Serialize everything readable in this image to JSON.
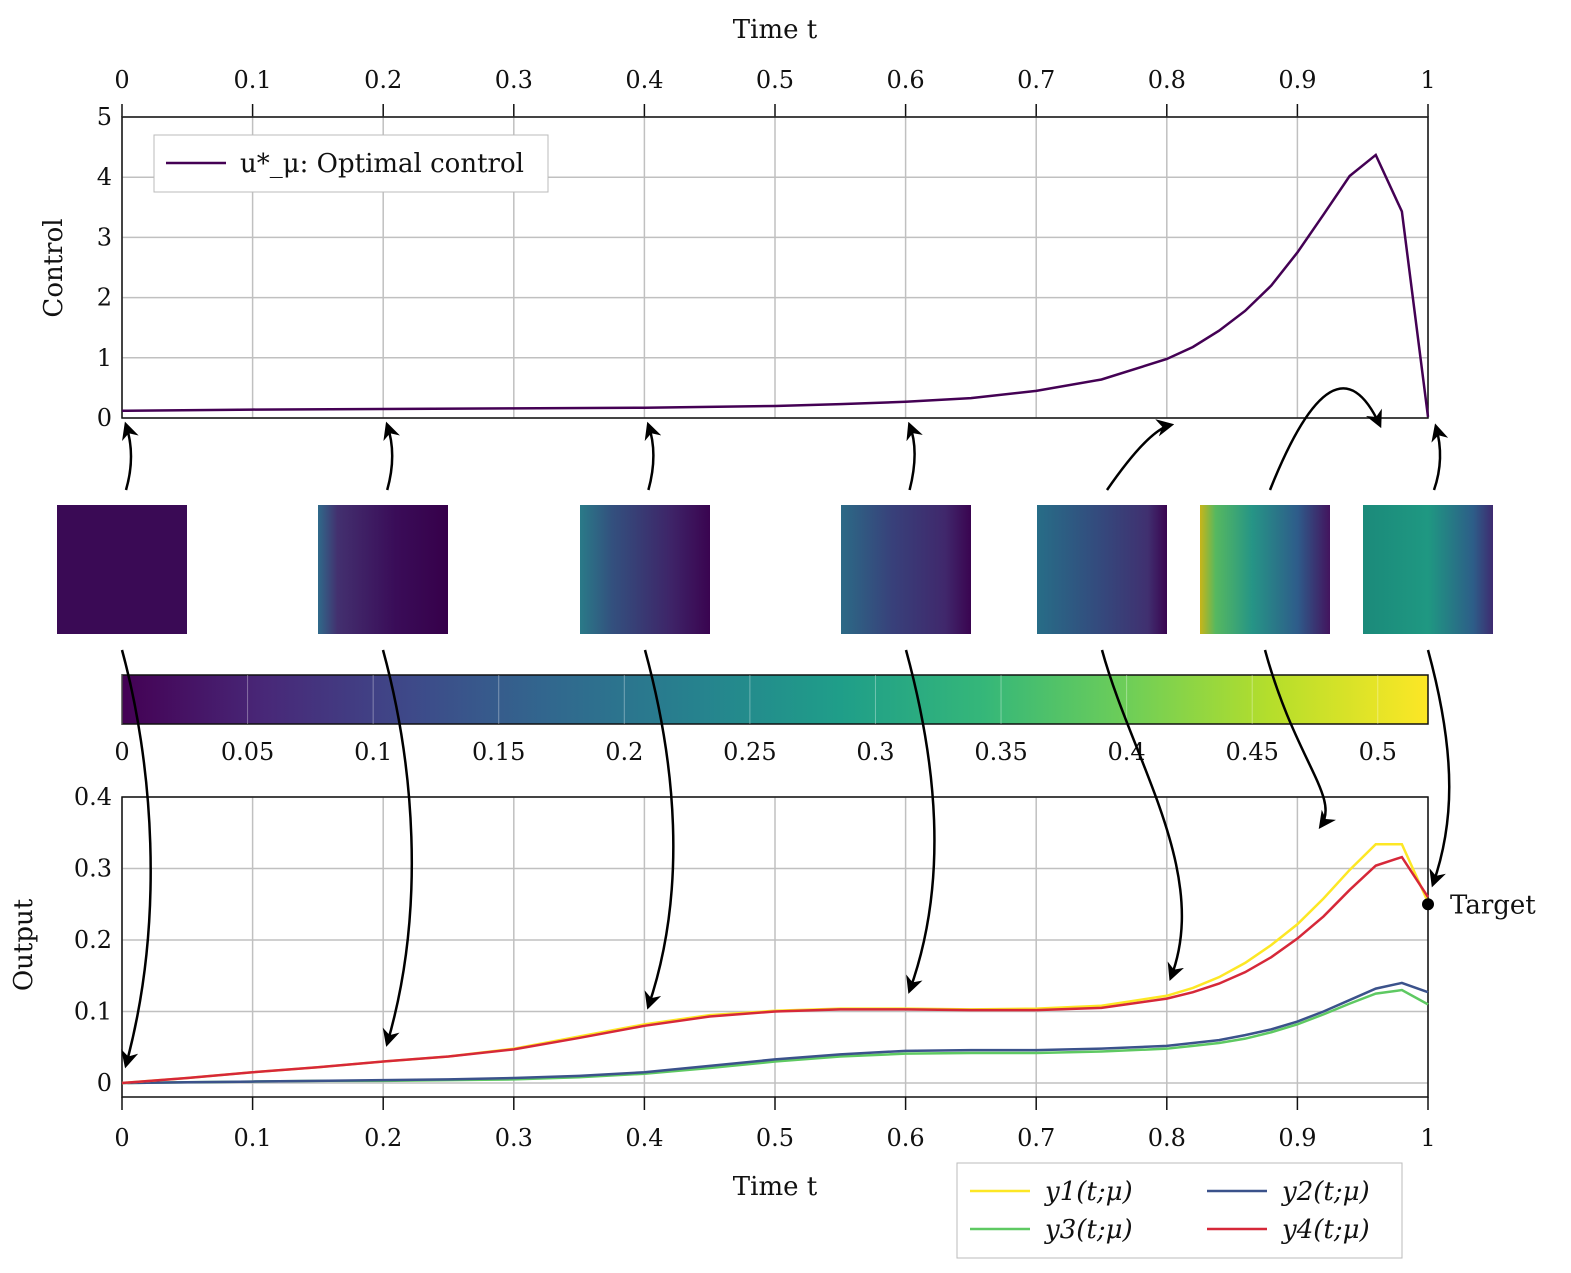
{
  "chart_data": [
    {
      "type": "line",
      "xlabel": "Time t",
      "ylabel": "Control",
      "xlim": [
        0,
        1
      ],
      "ylim": [
        0,
        5
      ],
      "xticks": [
        "0",
        "0.1",
        "0.2",
        "0.3",
        "0.4",
        "0.5",
        "0.6",
        "0.7",
        "0.8",
        "0.9",
        "1"
      ],
      "yticks": [
        "0",
        "1",
        "2",
        "3",
        "4",
        "5"
      ],
      "grid": true,
      "legend_position": "top-left",
      "series": [
        {
          "name": "u*_μ: Optimal control",
          "color": "#440154",
          "x": [
            0,
            0.1,
            0.2,
            0.3,
            0.4,
            0.5,
            0.55,
            0.6,
            0.65,
            0.7,
            0.75,
            0.8,
            0.82,
            0.84,
            0.86,
            0.88,
            0.9,
            0.92,
            0.94,
            0.96,
            0.98,
            1.0
          ],
          "y": [
            0.12,
            0.14,
            0.15,
            0.16,
            0.17,
            0.2,
            0.23,
            0.27,
            0.33,
            0.45,
            0.64,
            0.98,
            1.18,
            1.45,
            1.78,
            2.2,
            2.75,
            3.38,
            4.02,
            4.37,
            3.43,
            0.02
          ]
        }
      ]
    },
    {
      "type": "heatmap",
      "colorbar": true,
      "colormap": "viridis",
      "range": [
        0,
        0.52
      ],
      "ticks": [
        "0",
        "0.05",
        "0.1",
        "0.15",
        "0.2",
        "0.25",
        "0.3",
        "0.35",
        "0.4",
        "0.45",
        "0.5"
      ],
      "snapshot_times": [
        0,
        0.2,
        0.4,
        0.6,
        0.8,
        0.96,
        1.0
      ]
    },
    {
      "type": "line",
      "xlabel": "Time t",
      "ylabel": "Output",
      "xlim": [
        0,
        1
      ],
      "ylim": [
        -0.02,
        0.4
      ],
      "xticks": [
        "0",
        "0.1",
        "0.2",
        "0.3",
        "0.4",
        "0.5",
        "0.6",
        "0.7",
        "0.8",
        "0.9",
        "1"
      ],
      "yticks": [
        "0",
        "0.1",
        "0.2",
        "0.3",
        "0.4"
      ],
      "grid": true,
      "legend_position": "bottom-right-outside",
      "annotation": {
        "label": "Target",
        "x": 1.0,
        "y": 0.25
      },
      "x": [
        0,
        0.05,
        0.1,
        0.15,
        0.2,
        0.25,
        0.3,
        0.35,
        0.4,
        0.45,
        0.5,
        0.55,
        0.6,
        0.65,
        0.7,
        0.75,
        0.8,
        0.82,
        0.84,
        0.86,
        0.88,
        0.9,
        0.92,
        0.94,
        0.96,
        0.98,
        1.0
      ],
      "series": [
        {
          "name": "y1(t;μ)",
          "sub": "1",
          "color": "#fde725",
          "y": [
            0,
            0.007,
            0.015,
            0.022,
            0.03,
            0.037,
            0.048,
            0.065,
            0.082,
            0.095,
            0.101,
            0.104,
            0.104,
            0.103,
            0.104,
            0.108,
            0.122,
            0.133,
            0.148,
            0.168,
            0.193,
            0.222,
            0.258,
            0.298,
            0.334,
            0.334,
            0.253
          ]
        },
        {
          "name": "y2(t;μ)",
          "sub": "2",
          "color": "#3b528b",
          "y": [
            0,
            0.001,
            0.002,
            0.003,
            0.004,
            0.005,
            0.007,
            0.01,
            0.015,
            0.024,
            0.033,
            0.04,
            0.045,
            0.046,
            0.046,
            0.048,
            0.052,
            0.056,
            0.06,
            0.067,
            0.075,
            0.086,
            0.1,
            0.116,
            0.132,
            0.14,
            0.127
          ]
        },
        {
          "name": "y3(t;μ)",
          "sub": "3",
          "color": "#5ec962",
          "y": [
            0,
            0.001,
            0.002,
            0.003,
            0.003,
            0.004,
            0.005,
            0.008,
            0.013,
            0.021,
            0.03,
            0.037,
            0.041,
            0.042,
            0.042,
            0.044,
            0.048,
            0.052,
            0.056,
            0.062,
            0.071,
            0.082,
            0.096,
            0.111,
            0.125,
            0.13,
            0.11
          ]
        },
        {
          "name": "y4(t;μ)",
          "sub": "4",
          "color": "#d62839",
          "y": [
            0,
            0.007,
            0.015,
            0.022,
            0.03,
            0.037,
            0.047,
            0.063,
            0.08,
            0.093,
            0.1,
            0.103,
            0.103,
            0.102,
            0.102,
            0.105,
            0.118,
            0.127,
            0.139,
            0.155,
            0.176,
            0.202,
            0.233,
            0.27,
            0.304,
            0.316,
            0.26
          ]
        }
      ]
    }
  ]
}
